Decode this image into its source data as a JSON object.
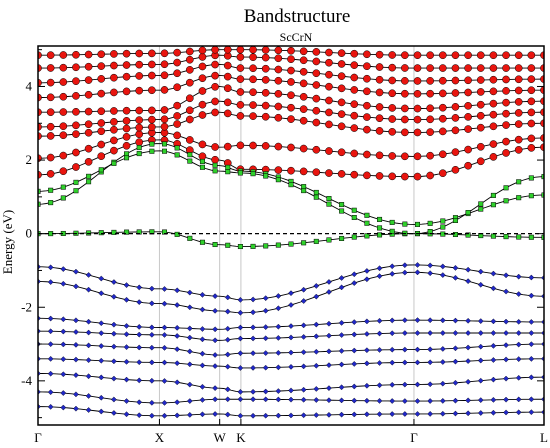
{
  "chart_data": {
    "type": "scatter",
    "title": "Bandstructure",
    "subtitle": "ScCrN",
    "ylabel": "Energy (eV)",
    "xlabel": "",
    "ylim": [
      -5.2,
      5.1
    ],
    "xlim": [
      0,
      1
    ],
    "grid": false,
    "fermi_level": 0,
    "x_ticks": [
      {
        "label": "Γ",
        "x": 0.0
      },
      {
        "label": "X",
        "x": 0.24
      },
      {
        "label": "W",
        "x": 0.359
      },
      {
        "label": "K",
        "x": 0.401
      },
      {
        "label": "Γ",
        "x": 0.743
      },
      {
        "label": "L",
        "x": 1.0
      }
    ],
    "y_ticks": [
      -4,
      -2,
      0,
      2,
      4
    ],
    "colors": {
      "red_states": "#e8150f",
      "green_states": "#2fd12b",
      "blue_states": "#2128c8",
      "band_lines": "#000000",
      "vertical_lines": "#c8c8c8"
    },
    "series": [
      {
        "color": "red",
        "bands": [
          {
            "x": [
              0,
              0.24,
              0.359,
              0.401,
              0.743,
              1.0
            ],
            "y": [
              1.6,
              2.55,
              2.0,
              1.75,
              1.55,
              2.35
            ]
          },
          {
            "x": [
              0,
              0.24,
              0.359,
              0.401,
              0.743,
              1.0
            ],
            "y": [
              2.05,
              2.75,
              2.35,
              2.4,
              2.1,
              2.6
            ]
          },
          {
            "x": [
              0,
              0.24,
              0.359,
              0.401,
              0.743,
              1.0
            ],
            "y": [
              2.65,
              2.9,
              3.3,
              3.2,
              2.75,
              3.0
            ]
          },
          {
            "x": [
              0,
              0.24,
              0.359,
              0.401,
              0.743,
              1.0
            ],
            "y": [
              2.9,
              3.1,
              3.6,
              3.5,
              3.1,
              3.3
            ]
          },
          {
            "x": [
              0,
              0.24,
              0.359,
              0.401,
              0.743,
              1.0
            ],
            "y": [
              3.3,
              3.35,
              4.0,
              3.85,
              3.4,
              3.6
            ]
          },
          {
            "x": [
              0,
              0.24,
              0.359,
              0.401,
              0.743,
              1.0
            ],
            "y": [
              3.7,
              3.9,
              4.3,
              4.2,
              3.8,
              3.9
            ]
          },
          {
            "x": [
              0,
              0.24,
              0.359,
              0.401,
              0.743,
              1.0
            ],
            "y": [
              4.1,
              4.3,
              4.6,
              4.5,
              4.15,
              4.2
            ]
          },
          {
            "x": [
              0,
              0.24,
              0.359,
              0.401,
              0.743,
              1.0
            ],
            "y": [
              4.5,
              4.6,
              4.85,
              4.8,
              4.5,
              4.5
            ]
          },
          {
            "x": [
              0,
              0.24,
              0.359,
              0.401,
              0.743,
              1.0
            ],
            "y": [
              4.85,
              4.9,
              5.0,
              5.0,
              4.85,
              4.85
            ]
          }
        ]
      },
      {
        "color": "green",
        "bands": [
          {
            "x": [
              0,
              0.24,
              0.359,
              0.401,
              0.743,
              1.0
            ],
            "y": [
              0.0,
              0.05,
              -0.3,
              -0.35,
              0.0,
              -0.1
            ]
          },
          {
            "x": [
              0,
              0.24,
              0.359,
              0.401,
              0.743,
              1.0
            ],
            "y": [
              0.8,
              2.45,
              1.85,
              1.7,
              0.25,
              1.05
            ]
          },
          {
            "x": [
              0,
              0.24,
              0.359,
              0.401,
              0.743,
              1.0
            ],
            "y": [
              1.15,
              2.25,
              1.7,
              1.65,
              0.0,
              1.55
            ]
          }
        ]
      },
      {
        "color": "blue",
        "bands": [
          {
            "x": [
              0,
              0.24,
              0.359,
              0.401,
              0.743,
              1.0
            ],
            "y": [
              -0.9,
              -1.5,
              -1.7,
              -1.8,
              -0.85,
              -1.2
            ]
          },
          {
            "x": [
              0,
              0.24,
              0.359,
              0.401,
              0.743,
              1.0
            ],
            "y": [
              -1.3,
              -1.9,
              -2.1,
              -2.15,
              -1.05,
              -1.7
            ]
          },
          {
            "x": [
              0,
              0.24,
              0.359,
              0.401,
              0.743,
              1.0
            ],
            "y": [
              -2.3,
              -2.55,
              -2.6,
              -2.55,
              -2.35,
              -2.4
            ]
          },
          {
            "x": [
              0,
              0.24,
              0.359,
              0.401,
              0.743,
              1.0
            ],
            "y": [
              -2.65,
              -2.75,
              -2.9,
              -2.85,
              -2.7,
              -2.7
            ]
          },
          {
            "x": [
              0,
              0.24,
              0.359,
              0.401,
              0.743,
              1.0
            ],
            "y": [
              -3.0,
              -3.1,
              -3.3,
              -3.25,
              -3.15,
              -3.0
            ]
          },
          {
            "x": [
              0,
              0.24,
              0.359,
              0.401,
              0.743,
              1.0
            ],
            "y": [
              -3.4,
              -3.5,
              -3.6,
              -3.65,
              -3.5,
              -3.4
            ]
          },
          {
            "x": [
              0,
              0.24,
              0.359,
              0.401,
              0.743,
              1.0
            ],
            "y": [
              -3.8,
              -4.0,
              -4.2,
              -4.3,
              -4.1,
              -3.9
            ]
          },
          {
            "x": [
              0,
              0.24,
              0.359,
              0.401,
              0.743,
              1.0
            ],
            "y": [
              -4.3,
              -4.6,
              -4.5,
              -4.5,
              -4.55,
              -4.5
            ]
          },
          {
            "x": [
              0,
              0.24,
              0.359,
              0.401,
              0.743,
              1.0
            ],
            "y": [
              -4.7,
              -4.95,
              -4.9,
              -4.95,
              -4.9,
              -4.85
            ]
          }
        ]
      }
    ]
  }
}
